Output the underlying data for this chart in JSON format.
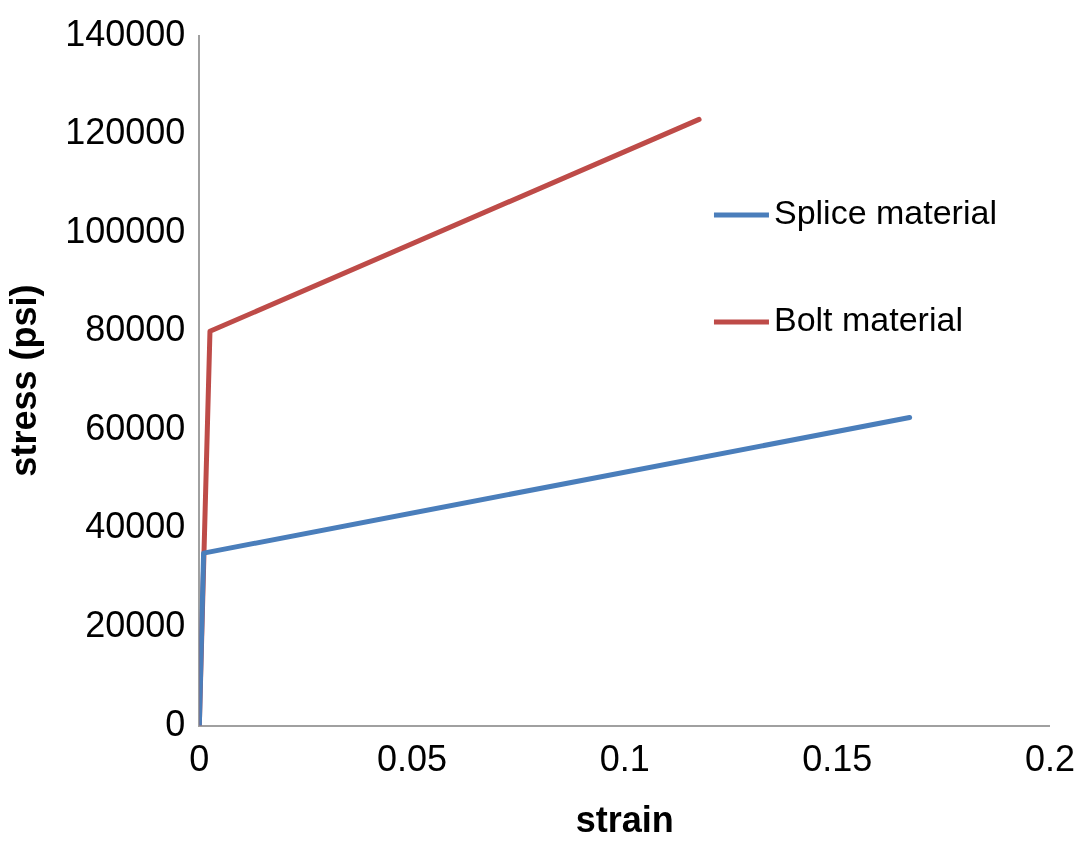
{
  "chart_data": {
    "type": "line",
    "xlabel": "strain",
    "ylabel": "stress (psi)",
    "xlim": [
      0,
      0.2
    ],
    "xticks": [
      0,
      0.05,
      0.1,
      0.15,
      0.2
    ],
    "ylim": [
      0,
      140000
    ],
    "yticks": [
      0,
      20000,
      40000,
      60000,
      80000,
      100000,
      120000,
      140000
    ],
    "grid": false,
    "legend": "right",
    "marker": "none",
    "line_style": "solid",
    "series": [
      {
        "name": "Splice material",
        "color": "#4a7ebb",
        "x": [
          0,
          0.001,
          0.167
        ],
        "values": [
          0,
          35000,
          62500
        ]
      },
      {
        "name": "Bolt material",
        "color": "#be4b48",
        "x": [
          0,
          0.0025,
          0.1175
        ],
        "values": [
          0,
          80000,
          123000
        ]
      }
    ]
  }
}
